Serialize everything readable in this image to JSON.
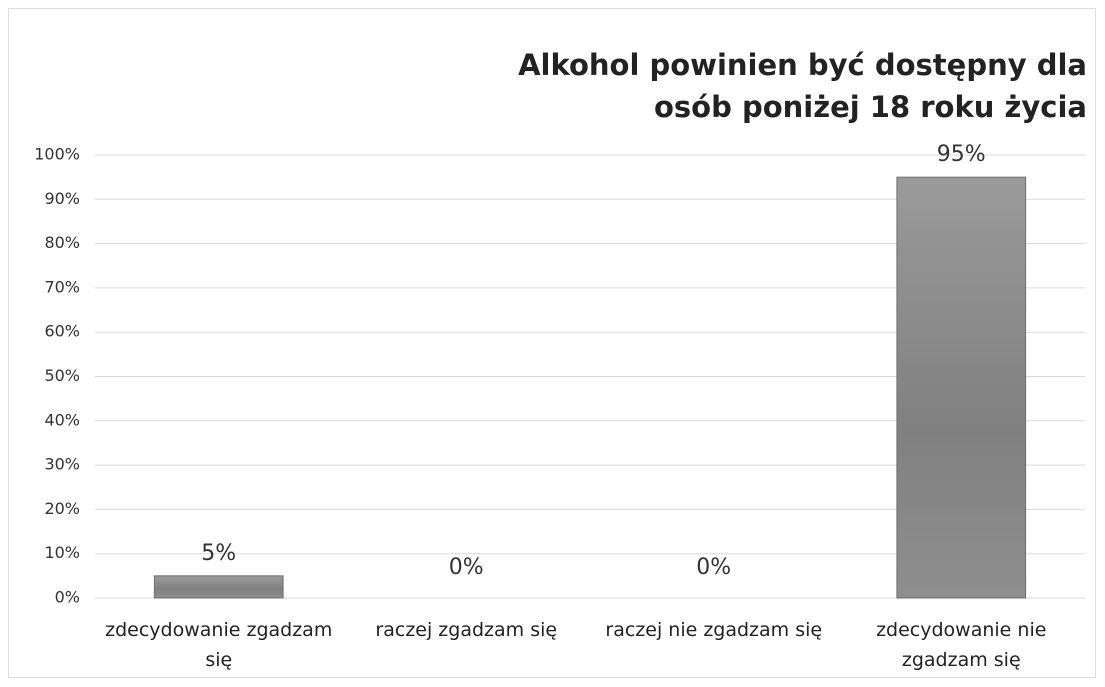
{
  "chart_data": {
    "type": "bar",
    "title": "Alkohol powinien być dostępny dla osób poniżej 18 roku życia",
    "categories": [
      "zdecydowanie zgadzam się",
      "raczej zgadzam się",
      "raczej nie zgadzam się",
      "zdecydowanie nie zgadzam się"
    ],
    "values": [
      5,
      0,
      0,
      95
    ],
    "value_labels": [
      "5%",
      "0%",
      "0%",
      "95%"
    ],
    "color": "#8c8c8c",
    "ylim": [
      0,
      100
    ],
    "yticks": [
      {
        "value": 0,
        "label": "0%"
      },
      {
        "value": 10,
        "label": "10%"
      },
      {
        "value": 20,
        "label": "20%"
      },
      {
        "value": 30,
        "label": "30%"
      },
      {
        "value": 40,
        "label": "40%"
      },
      {
        "value": 50,
        "label": "50%"
      },
      {
        "value": 60,
        "label": "60%"
      },
      {
        "value": 70,
        "label": "70%"
      },
      {
        "value": 80,
        "label": "80%"
      },
      {
        "value": 90,
        "label": "90%"
      },
      {
        "value": 100,
        "label": "100%"
      }
    ],
    "grid": true
  }
}
